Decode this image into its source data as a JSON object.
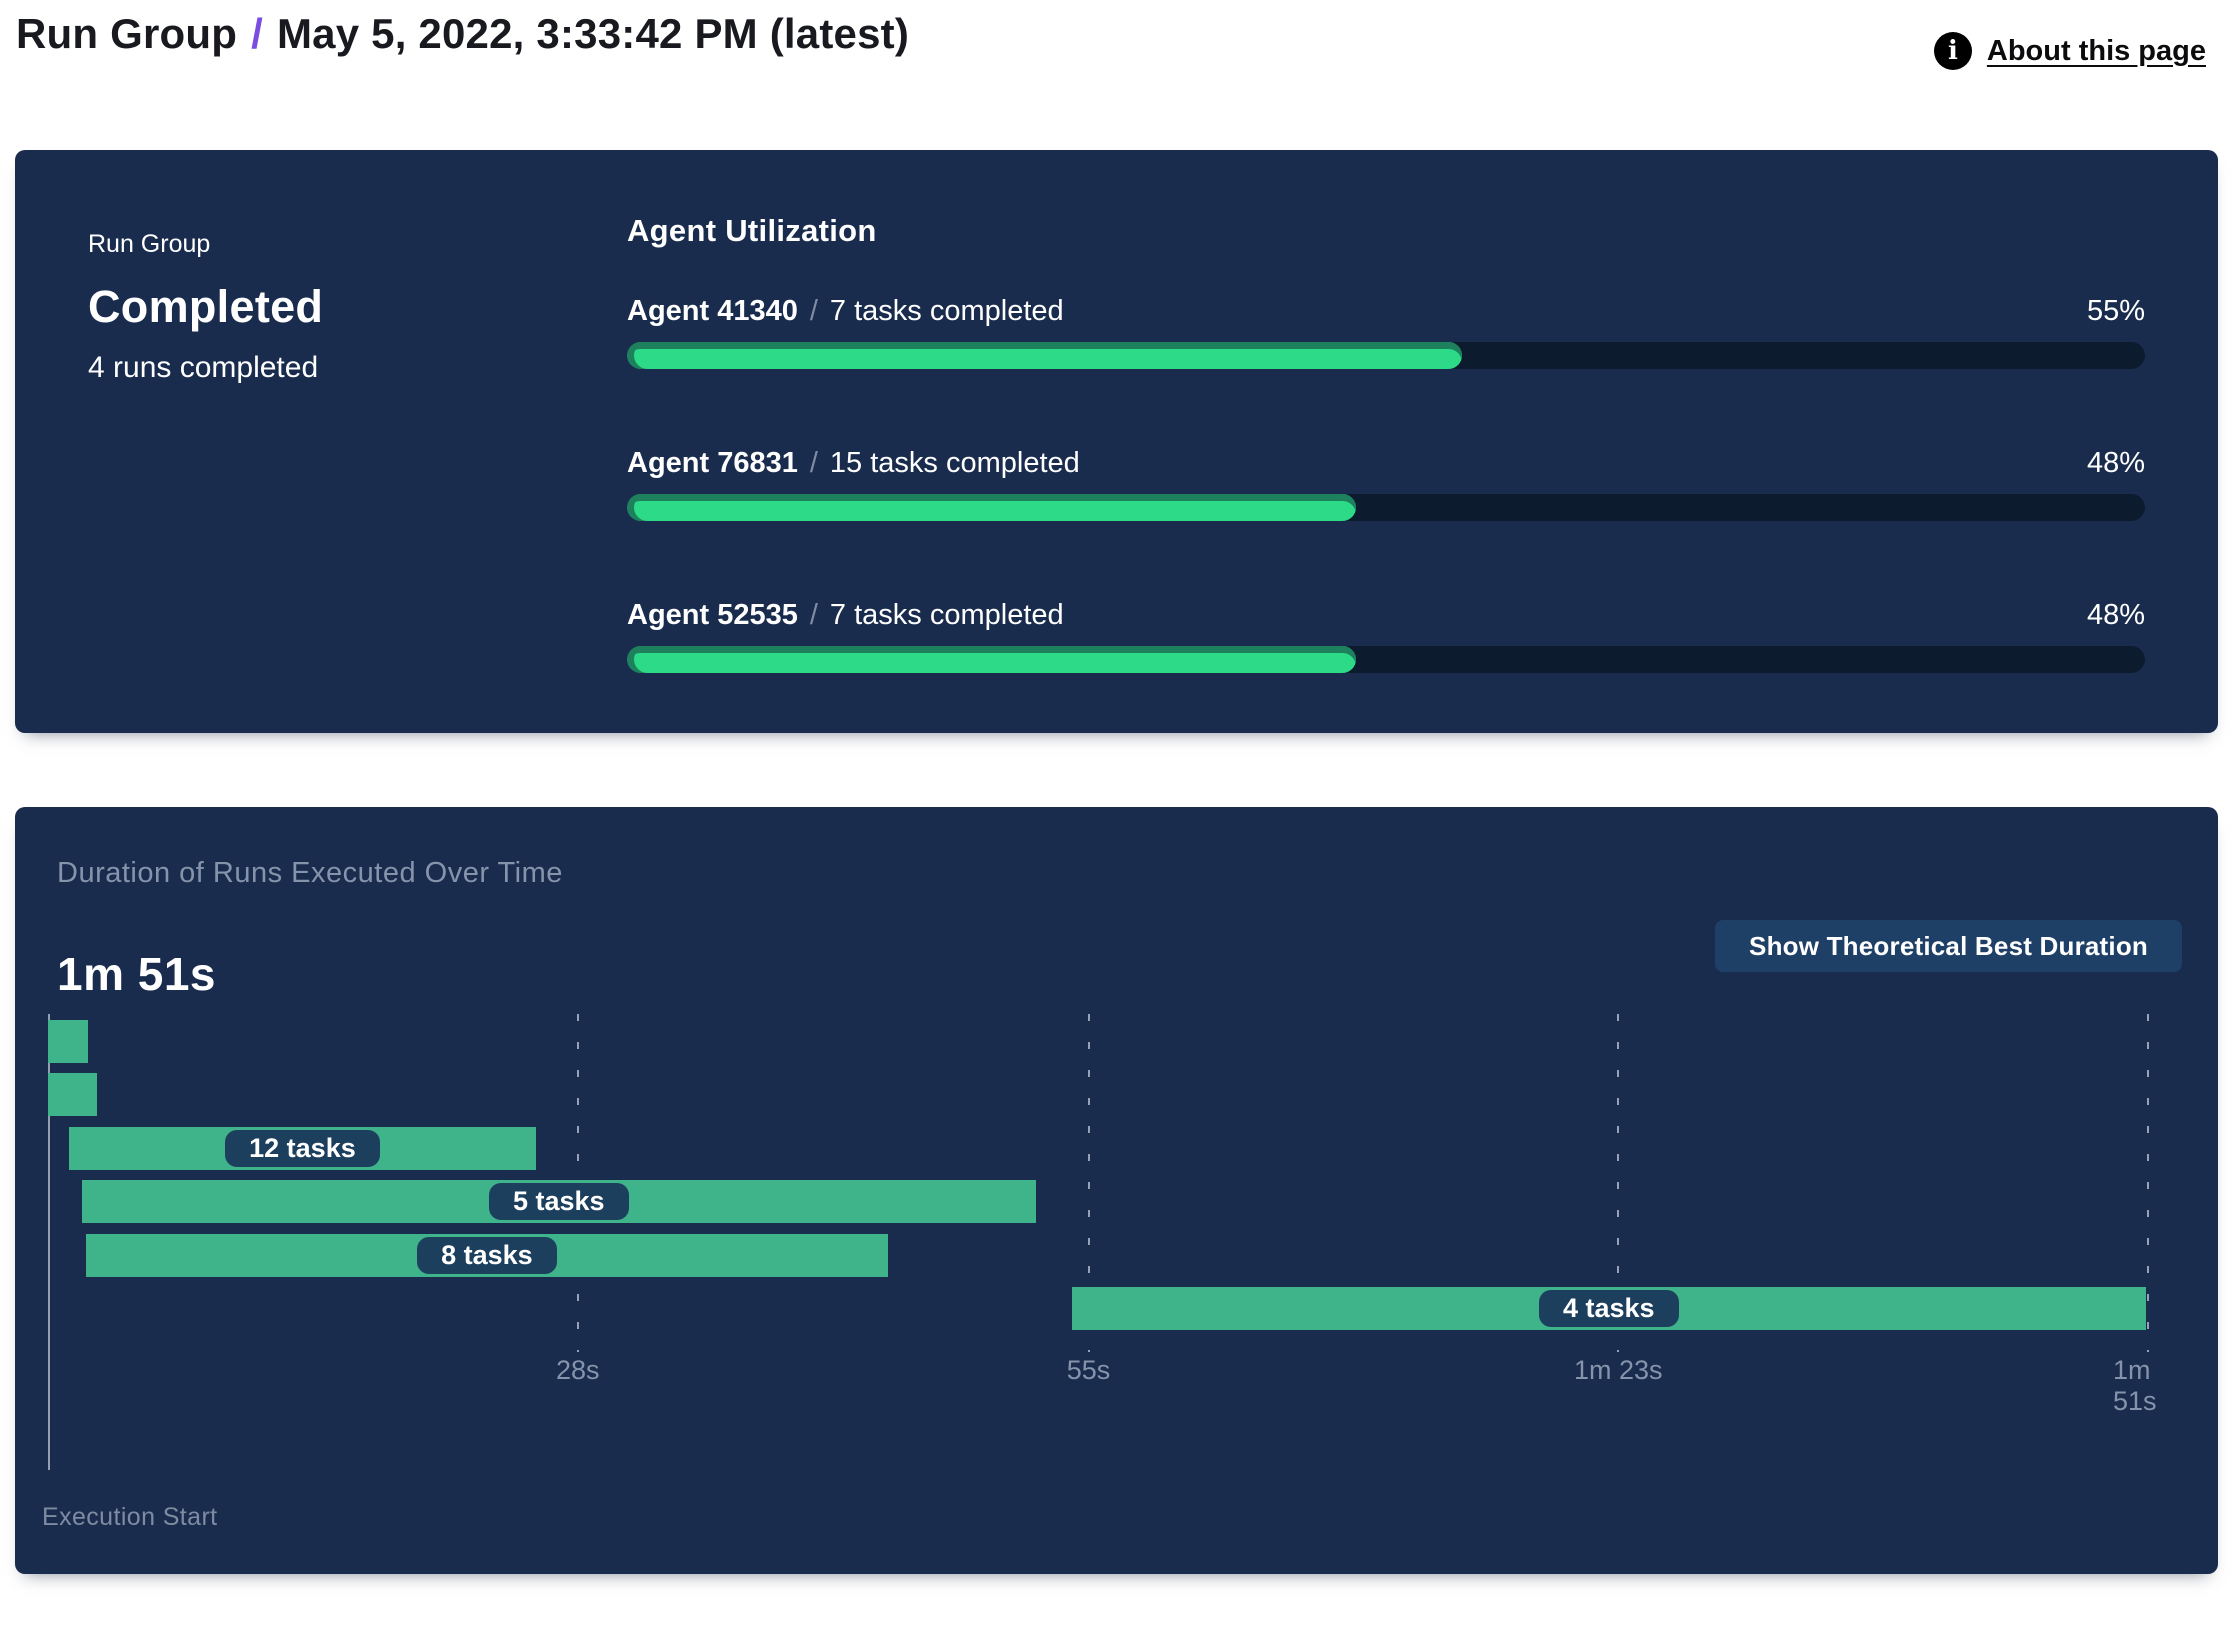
{
  "header": {
    "breadcrumb": "Run Group",
    "separator": "/",
    "title": "May 5, 2022, 3:33:42 PM (latest)",
    "about_link": "About this page",
    "info_icon_glyph": "i"
  },
  "run_group_panel": {
    "label": "Run Group",
    "status": "Completed",
    "runs_completed": "4 runs completed"
  },
  "agent_utilization": {
    "heading": "Agent Utilization",
    "rows": [
      {
        "name": "Agent 41340",
        "separator": "/",
        "tasks": "7 tasks completed",
        "pct": 55,
        "pct_label": "55%"
      },
      {
        "name": "Agent 76831",
        "separator": "/",
        "tasks": "15 tasks completed",
        "pct": 48,
        "pct_label": "48%"
      },
      {
        "name": "Agent 52535",
        "separator": "/",
        "tasks": "7 tasks completed",
        "pct": 48,
        "pct_label": "48%"
      }
    ]
  },
  "duration_panel": {
    "title": "Duration of Runs Executed Over Time",
    "total": "1m 51s",
    "button": "Show Theoretical Best Duration",
    "axis_label": "Execution Start"
  },
  "chart_data": [
    {
      "type": "bar",
      "title": "Agent Utilization",
      "categories": [
        "Agent 41340",
        "Agent 76831",
        "Agent 52535"
      ],
      "values": [
        55,
        48,
        48
      ],
      "value_unit": "percent",
      "annotations": [
        "7 tasks completed",
        "15 tasks completed",
        "7 tasks completed"
      ],
      "xlim": [
        0,
        100
      ]
    },
    {
      "type": "gantt",
      "title": "Duration of Runs Executed Over Time",
      "total_duration": "1m 51s",
      "x_unit": "seconds",
      "x_range": [
        0,
        111
      ],
      "x_ticks": [
        {
          "t": 28,
          "label": "28s"
        },
        {
          "t": 55,
          "label": "55s"
        },
        {
          "t": 83,
          "label": "1m 23s"
        },
        {
          "t": 111,
          "label": "1m 51s"
        }
      ],
      "runs": [
        {
          "start": 0,
          "end": 2.1,
          "label": ""
        },
        {
          "start": 0,
          "end": 2.6,
          "label": ""
        },
        {
          "start": 1.1,
          "end": 25.8,
          "label": "12 tasks"
        },
        {
          "start": 1.8,
          "end": 52.2,
          "label": "5 tasks"
        },
        {
          "start": 2.0,
          "end": 44.4,
          "label": "8 tasks"
        },
        {
          "start": 54.1,
          "end": 110.9,
          "label": "4 tasks"
        }
      ],
      "xlabel": "Execution Start",
      "grid": "dashed-vertical",
      "legend": "none"
    }
  ],
  "colors": {
    "panel_bg": "#1a2c4e",
    "track": "#0d1b2f",
    "progress_fill": "#2cda88",
    "progress_edge": "#1e815d",
    "gantt_bar": "#3fb38a",
    "pill_bg": "#1d3f5e",
    "muted_text": "#8593ab",
    "accent_slash": "#7a4ce0",
    "button_bg": "#1e3f66"
  }
}
